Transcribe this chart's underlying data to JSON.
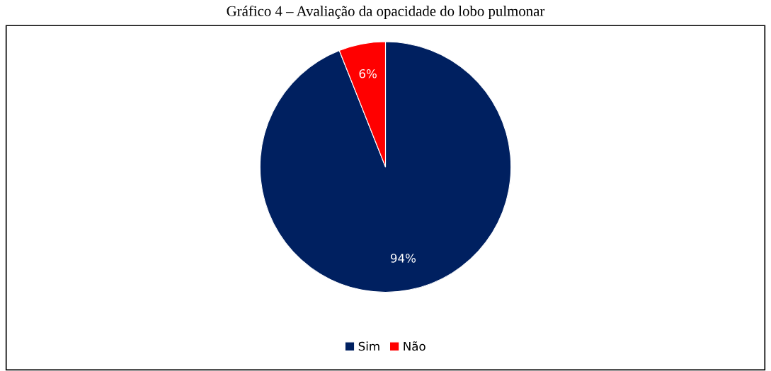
{
  "chart_data": {
    "type": "pie",
    "title": "Gráfico 4 – Avaliação da opacidade do lobo pulmonar",
    "categories": [
      "Sim",
      "Não"
    ],
    "values": [
      94,
      6
    ],
    "colors": [
      "#002060",
      "#ff0000"
    ],
    "value_labels": [
      "94%",
      "6%"
    ],
    "legend": "bottom"
  }
}
